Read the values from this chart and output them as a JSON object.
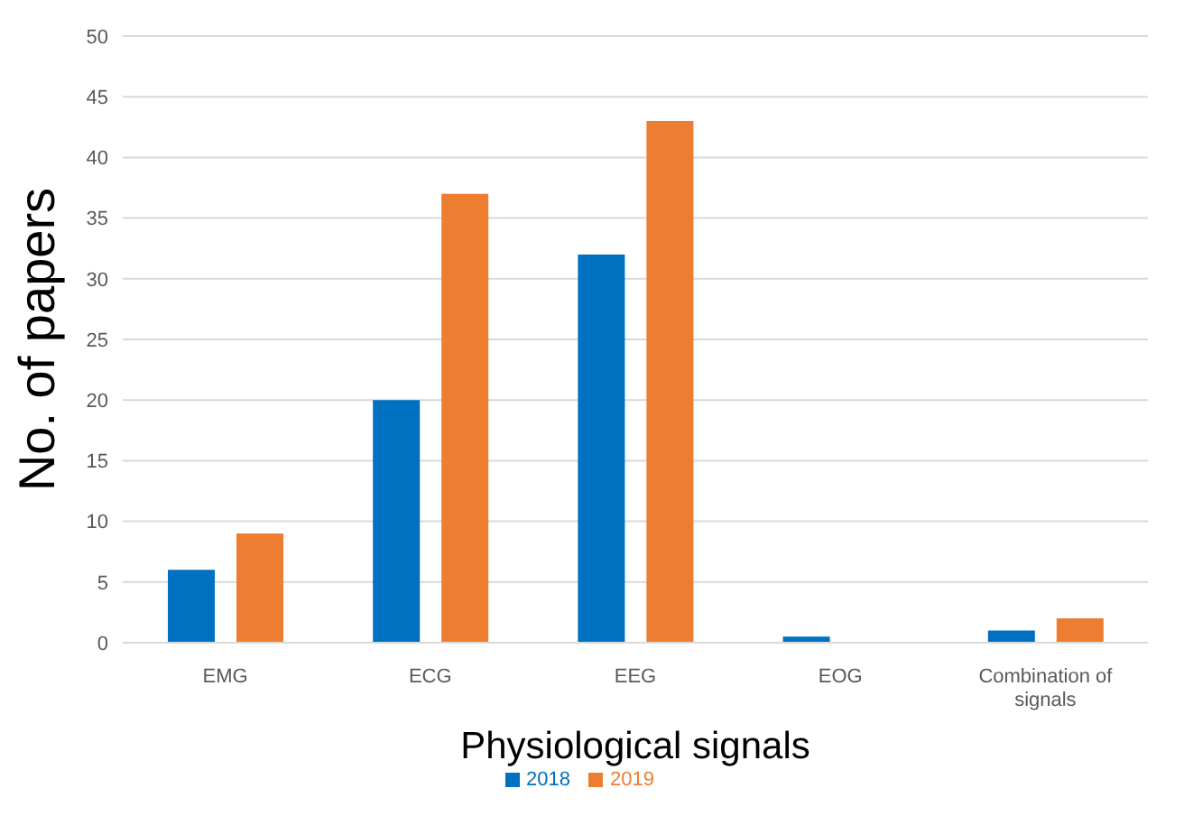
{
  "chart_data": {
    "type": "bar",
    "xlabel": "Physiological signals",
    "ylabel": "No. of papers",
    "categories": [
      "EMG",
      "ECG",
      "EEG",
      "EOG",
      "Combination of signals"
    ],
    "series": [
      {
        "name": "2018",
        "color": "#0070c0",
        "values": [
          6,
          20,
          32,
          0.5,
          1
        ]
      },
      {
        "name": "2019",
        "color": "#ed7d31",
        "values": [
          9,
          37,
          43,
          0,
          2
        ]
      }
    ],
    "ylim": [
      0,
      50
    ],
    "yticks": [
      0,
      5,
      10,
      15,
      20,
      25,
      30,
      35,
      40,
      45,
      50
    ],
    "grid": "y",
    "legend": "bottom"
  }
}
